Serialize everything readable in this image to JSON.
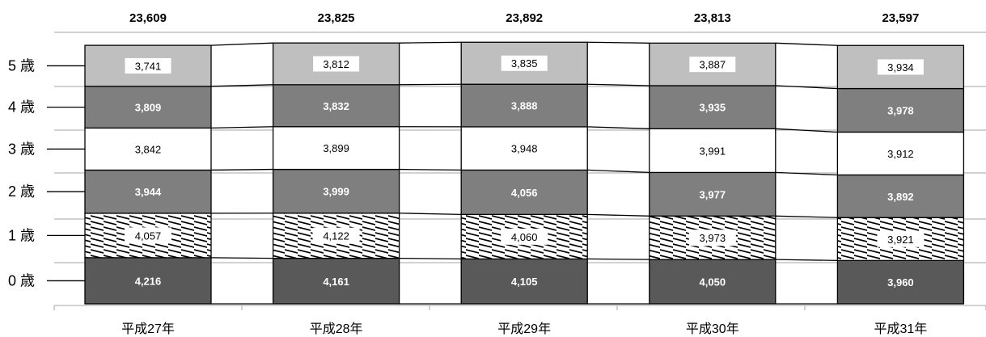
{
  "chart_data": {
    "type": "bar",
    "stacked": true,
    "categories": [
      "平成27年",
      "平成28年",
      "平成29年",
      "平成30年",
      "平成31年"
    ],
    "totals": [
      "23,609",
      "23,825",
      "23,892",
      "23,813",
      "23,597"
    ],
    "series": [
      {
        "name": "0 歳",
        "values": [
          4216,
          4161,
          4105,
          4050,
          3960
        ],
        "labels": [
          "4,216",
          "4,161",
          "4,105",
          "4,050",
          "3,960"
        ],
        "fill": "#595959",
        "text_color": "#ffffff",
        "bold": true
      },
      {
        "name": "1 歳",
        "values": [
          4057,
          4122,
          4060,
          3973,
          3921
        ],
        "labels": [
          "4,057",
          "4,122",
          "4,060",
          "3,973",
          "3,921"
        ],
        "fill": "hatch",
        "text_color": "#000000",
        "bold": false
      },
      {
        "name": "2 歳",
        "values": [
          3944,
          3999,
          4056,
          3977,
          3892
        ],
        "labels": [
          "3,944",
          "3,999",
          "4,056",
          "3,977",
          "3,892"
        ],
        "fill": "#7f7f7f",
        "text_color": "#ffffff",
        "bold": true
      },
      {
        "name": "3 歳",
        "values": [
          3842,
          3899,
          3948,
          3991,
          3912
        ],
        "labels": [
          "3,842",
          "3,899",
          "3,948",
          "3,991",
          "3,912"
        ],
        "fill": "#ffffff",
        "text_color": "#000000",
        "bold": false
      },
      {
        "name": "4 歳",
        "values": [
          3809,
          3832,
          3888,
          3935,
          3978
        ],
        "labels": [
          "3,809",
          "3,832",
          "3,888",
          "3,935",
          "3,978"
        ],
        "fill": "#7f7f7f",
        "text_color": "#ffffff",
        "bold": true
      },
      {
        "name": "5 歳",
        "values": [
          3741,
          3812,
          3835,
          3887,
          3934
        ],
        "labels": [
          "3,741",
          "3,812",
          "3,835",
          "3,887",
          "3,934"
        ],
        "fill": "#bfbfbf",
        "text_color": "#000000",
        "bold": false,
        "label_box": true
      }
    ],
    "ylim": [
      0,
      24000
    ],
    "legend": "left",
    "grid": true
  }
}
